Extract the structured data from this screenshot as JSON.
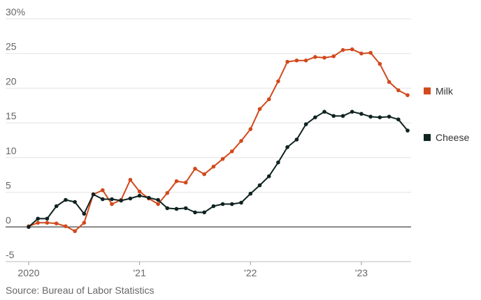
{
  "chart_data": {
    "type": "line",
    "y_unit": "%",
    "ylim": [
      -5,
      30
    ],
    "y_ticks": [
      {
        "value": 30,
        "label": "30%"
      },
      {
        "value": 25,
        "label": "25"
      },
      {
        "value": 20,
        "label": "20"
      },
      {
        "value": 15,
        "label": "15"
      },
      {
        "value": 10,
        "label": "10"
      },
      {
        "value": 5,
        "label": "5"
      },
      {
        "value": 0,
        "label": "0"
      },
      {
        "value": -5,
        "label": "-5"
      }
    ],
    "x_start": "2020-01",
    "x_end": "2023-06",
    "x_ticks": [
      {
        "date": "2020-01",
        "label": "2020"
      },
      {
        "date": "2021-01",
        "label": "'21"
      },
      {
        "date": "2022-01",
        "label": "'22"
      },
      {
        "date": "2023-01",
        "label": "'23"
      }
    ],
    "grid": true,
    "zero_line": true,
    "legend_position": "right, at end of lines",
    "x": [
      "2020-01",
      "2020-02",
      "2020-03",
      "2020-04",
      "2020-05",
      "2020-06",
      "2020-07",
      "2020-08",
      "2020-09",
      "2020-10",
      "2020-11",
      "2020-12",
      "2021-01",
      "2021-02",
      "2021-03",
      "2021-04",
      "2021-05",
      "2021-06",
      "2021-07",
      "2021-08",
      "2021-09",
      "2021-10",
      "2021-11",
      "2021-12",
      "2022-01",
      "2022-02",
      "2022-03",
      "2022-04",
      "2022-05",
      "2022-06",
      "2022-07",
      "2022-08",
      "2022-09",
      "2022-10",
      "2022-11",
      "2022-12",
      "2023-01",
      "2023-02",
      "2023-03",
      "2023-04",
      "2023-05",
      "2023-06"
    ],
    "series": [
      {
        "name": "Milk",
        "color": "#d2491c",
        "values": [
          0.1,
          0.6,
          0.6,
          0.5,
          0.1,
          -0.6,
          0.6,
          4.7,
          5.3,
          3.3,
          3.9,
          6.8,
          5.1,
          4.1,
          3.3,
          4.9,
          6.6,
          6.4,
          8.4,
          7.6,
          8.7,
          9.8,
          10.9,
          12.4,
          14.1,
          17.0,
          18.4,
          21.0,
          23.8,
          24.0,
          24.0,
          24.5,
          24.4,
          24.6,
          25.5,
          25.6,
          25.0,
          25.1,
          23.5,
          20.9,
          19.7,
          19.0
        ]
      },
      {
        "name": "Cheese",
        "color": "#0f2321",
        "values": [
          0.0,
          1.2,
          1.2,
          3.0,
          3.9,
          3.6,
          1.9,
          4.7,
          4.0,
          4.0,
          3.8,
          4.1,
          4.5,
          4.2,
          3.9,
          2.7,
          2.6,
          2.7,
          2.1,
          2.1,
          3.0,
          3.3,
          3.3,
          3.5,
          4.8,
          6.0,
          7.3,
          9.3,
          11.5,
          12.6,
          14.8,
          15.8,
          16.6,
          16.0,
          16.0,
          16.6,
          16.3,
          15.9,
          15.8,
          15.9,
          15.5,
          13.9
        ]
      }
    ]
  },
  "source": "Source: Bureau of Labor Statistics"
}
